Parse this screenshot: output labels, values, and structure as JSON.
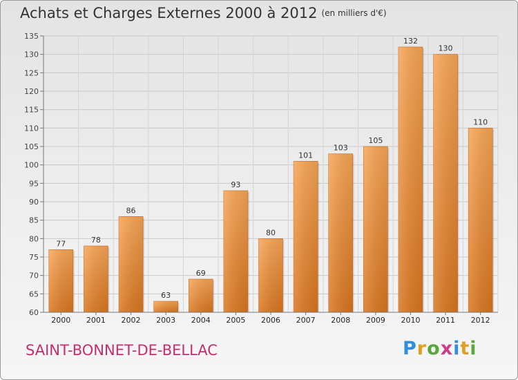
{
  "header": {
    "title": "Achats et Charges Externes 2000 à 2012",
    "unit": "(en milliers d'€)"
  },
  "footer": {
    "commune": "SAINT-BONNET-DE-BELLAC",
    "logo_letters": [
      "P",
      "r",
      "o",
      "x",
      "i",
      "t",
      "i"
    ],
    "logo_colors": [
      "#2f8fd8",
      "#e0a020",
      "#59a83a",
      "#d23a8a",
      "#2f8fd8",
      "#e0a020",
      "#59a83a"
    ]
  },
  "chart_data": {
    "type": "bar",
    "title": "Achats et Charges Externes 2000 à 2012",
    "subtitle": "(en milliers d'€)",
    "xlabel": "",
    "ylabel": "",
    "categories": [
      "2000",
      "2001",
      "2002",
      "2003",
      "2004",
      "2005",
      "2006",
      "2007",
      "2008",
      "2009",
      "2010",
      "2011",
      "2012"
    ],
    "values": [
      77,
      78,
      86,
      63,
      69,
      93,
      80,
      101,
      103,
      105,
      132,
      130,
      110
    ],
    "ylim": [
      60,
      135
    ],
    "yticks": [
      60,
      65,
      70,
      75,
      80,
      85,
      90,
      95,
      100,
      105,
      110,
      115,
      120,
      125,
      130,
      135
    ],
    "grid": true,
    "bar_color": "#f0913a"
  }
}
